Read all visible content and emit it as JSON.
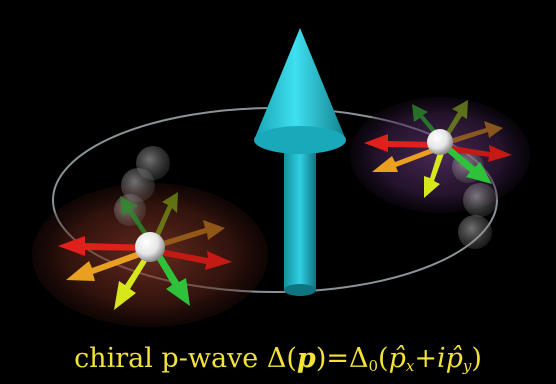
{
  "caption": {
    "prefix": "chiral p-wave",
    "delta": "Δ",
    "open_paren": "(",
    "p_symbol": "p",
    "close_paren_eq": ")=",
    "delta0": "Δ",
    "delta0_sub": "0",
    "rhs_open": "(",
    "px_hat": "p̂",
    "px_sub": "x",
    "plus_i": "+i",
    "py_hat": "p̂",
    "py_sub": "y",
    "rhs_close": ")"
  },
  "colors": {
    "background": "#000000",
    "caption": "#f2e23a",
    "cone": "#27c9dc",
    "orbit": "#b8c4c8",
    "red_arrow": "#e0201a",
    "orange_arrow": "#e9a020",
    "yellow_green_arrow": "#d6e81c",
    "green_arrow": "#2ec23a",
    "sphere": "#f4f4f4"
  },
  "icons": {
    "central": "angular-momentum-arrow-icon",
    "pair": "cooper-pair-arrows-icon"
  }
}
